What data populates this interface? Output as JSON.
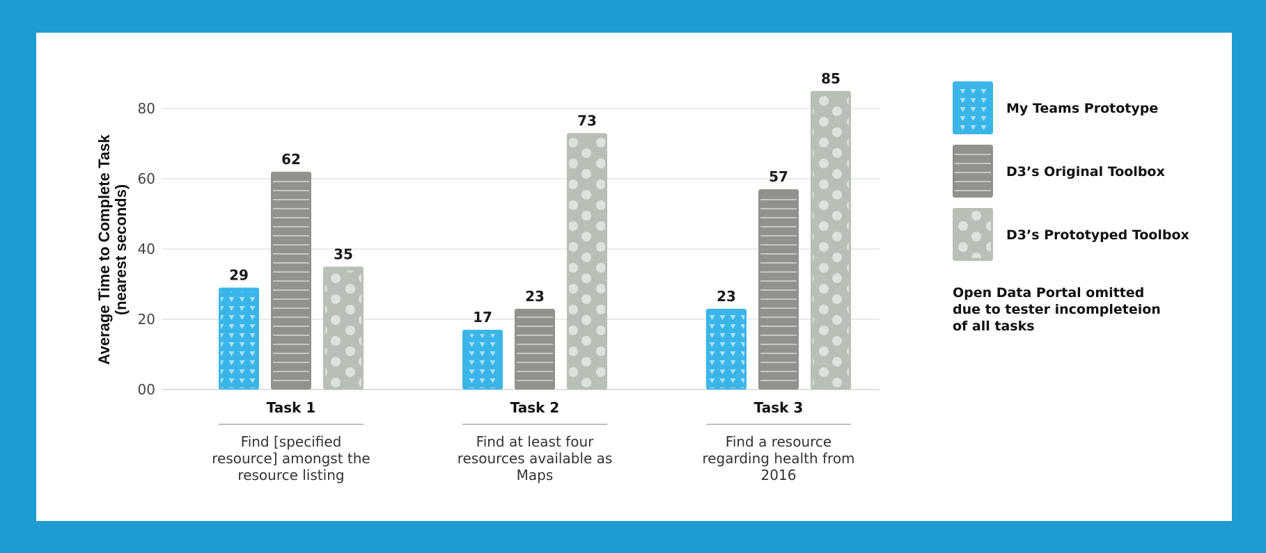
{
  "chart_data": {
    "type": "bar",
    "ylabel": "Average Time to Complete Task (nearest seconds)",
    "ylabel_lines": [
      "Average Time to Complete Task",
      "(nearest seconds)"
    ],
    "ylim": [
      0,
      85
    ],
    "yticks": [
      0,
      20,
      40,
      60,
      80
    ],
    "ytick_labels": [
      "00",
      "20",
      "40",
      "60",
      "80"
    ],
    "grid": true,
    "legend_position": "right",
    "categories": [
      "Task 1",
      "Task 2",
      "Task 3"
    ],
    "category_descriptions": [
      [
        "Find [specified",
        "resource] amongst the",
        "resource listing"
      ],
      [
        "Find at least four",
        "resources available as",
        "Maps"
      ],
      [
        "Find a resource",
        "regarding health from",
        "2016"
      ]
    ],
    "series": [
      {
        "name": "My Teams Prototype",
        "values": [
          29,
          17,
          23
        ],
        "color": "#3bb5e8",
        "pattern": "triangles"
      },
      {
        "name": "D3’s Original Toolbox",
        "values": [
          62,
          23,
          57
        ],
        "color": "#8f928d",
        "pattern": "lines"
      },
      {
        "name": "D3’s Prototyped Toolbox",
        "values": [
          35,
          73,
          85
        ],
        "color": "#b8bfb5",
        "pattern": "dots"
      }
    ],
    "note": [
      "Open Data Portal omitted",
      "due to tester incompleteion",
      "of all tasks"
    ]
  }
}
